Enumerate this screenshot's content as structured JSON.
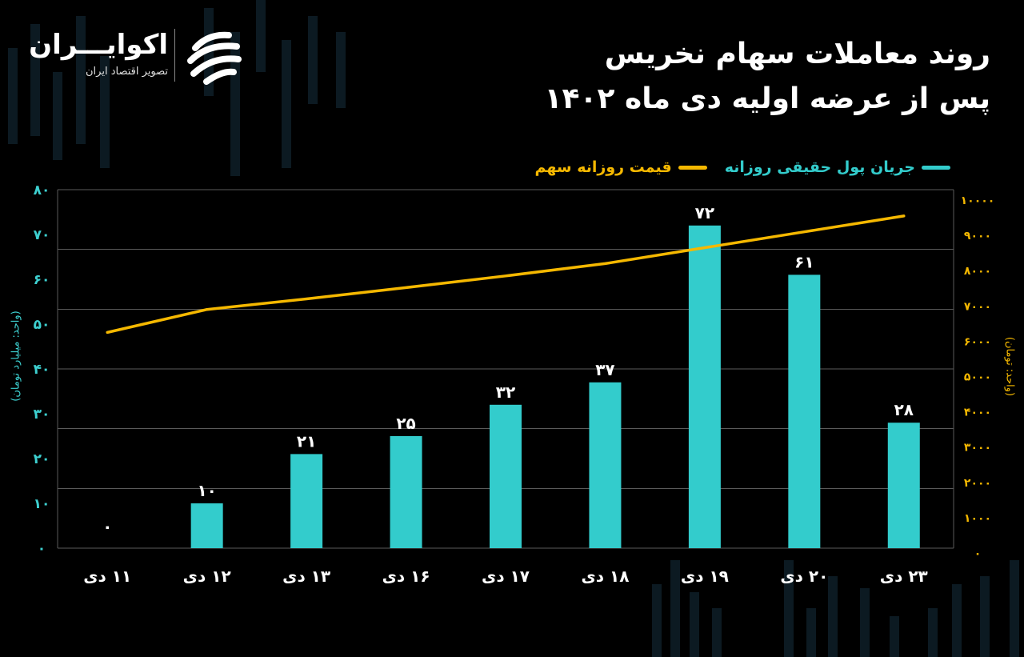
{
  "brand": {
    "name": "اکوایـــران",
    "tagline": "تصویر اقتصاد ایران"
  },
  "title": {
    "line1": "روند معاملات سهام نخریس",
    "line2": "پس از عرضه اولیه دی ماه ۱۴۰۲"
  },
  "legend": {
    "flow": "جریان پول حقیقی روزانه",
    "price": "قیمت روزانه سهم"
  },
  "axes": {
    "left_title": "(واحد: میلیارد تومان)",
    "right_title": "(واحد: تومان)"
  },
  "colors": {
    "background": "#000000",
    "bar": "#33cccc",
    "line": "#f5b800",
    "grid": "#5a5a5a",
    "left_axis_text": "#3dd0d0",
    "right_axis_text": "#f5b800"
  },
  "chart_data": {
    "type": "bar",
    "categories": [
      "۱۱ دی",
      "۱۲ دی",
      "۱۳ دی",
      "۱۶ دی",
      "۱۷ دی",
      "۱۸ دی",
      "۱۹ دی",
      "۲۰ دی",
      "۲۳ دی"
    ],
    "series": [
      {
        "name": "جریان پول حقیقی روزانه",
        "type": "bar",
        "axis": "left",
        "values": [
          0,
          10,
          21,
          25,
          32,
          37,
          72,
          61,
          28
        ],
        "labels": [
          "۰",
          "۱۰",
          "۲۱",
          "۲۵",
          "۳۲",
          "۳۷",
          "۷۲",
          "۶۱",
          "۲۸"
        ]
      },
      {
        "name": "قیمت روزانه سهم",
        "type": "line",
        "axis": "right",
        "values": [
          6250,
          6900,
          7200,
          7520,
          7850,
          8200,
          8650,
          9100,
          9550
        ]
      }
    ],
    "y_left": {
      "range": [
        0,
        80
      ],
      "ticks": [
        0,
        10,
        20,
        30,
        40,
        50,
        60,
        70,
        80
      ],
      "tick_labels": [
        "۰",
        "۱۰",
        "۲۰",
        "۳۰",
        "۴۰",
        "۵۰",
        "۶۰",
        "۷۰",
        "۸۰"
      ]
    },
    "y_right": {
      "range": [
        0,
        10000
      ],
      "ticks": [
        0,
        1000,
        2000,
        3000,
        4000,
        5000,
        6000,
        7000,
        8000,
        9000,
        10000
      ],
      "tick_labels": [
        "۰",
        "۱۰۰۰",
        "۲۰۰۰",
        "۳۰۰۰",
        "۴۰۰۰",
        "۵۰۰۰",
        "۶۰۰۰",
        "۷۰۰۰",
        "۸۰۰۰",
        "۹۰۰۰",
        "۱۰۰۰۰"
      ]
    },
    "gridlines": [
      0,
      13.3,
      26.7,
      40,
      53.3,
      66.7,
      80
    ],
    "grid": true,
    "legend_position": "top-right"
  }
}
